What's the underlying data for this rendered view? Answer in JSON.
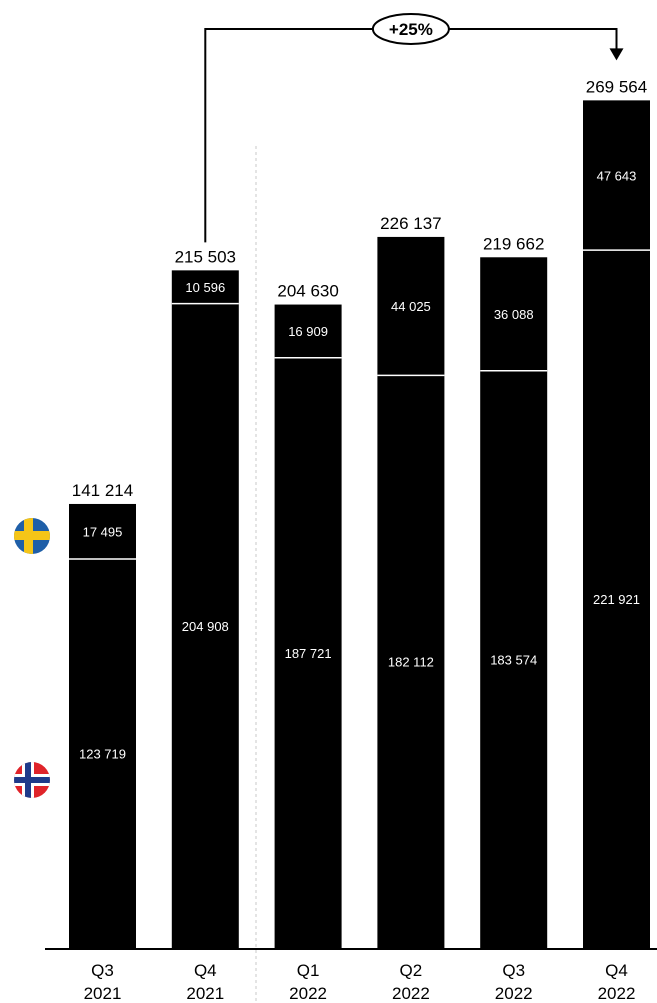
{
  "chart_data": {
    "type": "bar",
    "stacked": true,
    "categories": [
      [
        "Q3",
        "2021"
      ],
      [
        "Q4",
        "2021"
      ],
      [
        "Q1",
        "2022"
      ],
      [
        "Q2",
        "2022"
      ],
      [
        "Q3",
        "2022"
      ],
      [
        "Q4",
        "2022"
      ]
    ],
    "series": [
      {
        "flag": "norway-flag-icon",
        "color": "#000000",
        "values": [
          123719,
          204908,
          187721,
          182112,
          183574,
          221921
        ],
        "value_labels": [
          "123 719",
          "204 908",
          "187 721",
          "182 112",
          "183 574",
          "221 921"
        ]
      },
      {
        "flag": "sweden-flag-icon",
        "color": "#000000",
        "values": [
          17495,
          10596,
          16909,
          44025,
          36088,
          47643
        ],
        "value_labels": [
          "17 495",
          "10 596",
          "16 909",
          "44 025",
          "36 088",
          "47 643"
        ]
      }
    ],
    "totals": [
      141214,
      215503,
      204630,
      226137,
      219662,
      269564
    ],
    "total_labels": [
      "141 214",
      "215 503",
      "204 630",
      "226 137",
      "219 662",
      "269 564"
    ],
    "annotation": {
      "text": "+25%",
      "from_category": 1,
      "to_category": 5
    },
    "divider_after_category": 1,
    "ylim": [
      0,
      270000
    ],
    "grid": false,
    "legend": "left, flags"
  },
  "colors": {
    "bar": "#000000",
    "separator": "#ffffff",
    "sweden_blue": "#1f5fa8",
    "sweden_yellow": "#f5c518",
    "norway_red": "#e0242a",
    "norway_blue": "#1f3a8a"
  }
}
